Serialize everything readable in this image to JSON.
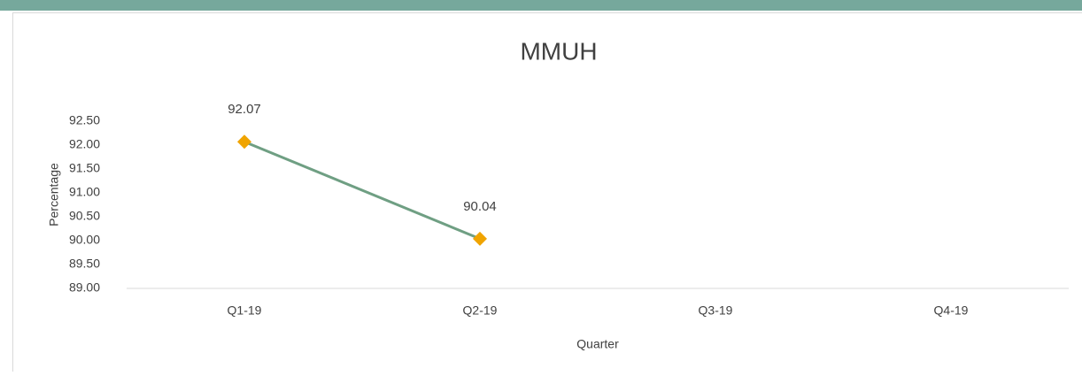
{
  "chart_data": {
    "type": "line",
    "title": "MMUH",
    "x_label": "Quarter",
    "y_label": "Percentage",
    "categories": [
      "Q1-19",
      "Q2-19",
      "Q3-19",
      "Q4-19"
    ],
    "series": [
      {
        "name": "MMUH",
        "color": "#6f9f83",
        "marker_color": "#f0a400",
        "values": [
          92.07,
          90.04,
          null,
          null
        ]
      }
    ],
    "ylim": [
      89,
      92.5
    ],
    "yticks": [
      {
        "value": 89,
        "label": "89.00"
      },
      {
        "value": 89.5,
        "label": "89.50"
      },
      {
        "value": 90,
        "label": "90.00"
      },
      {
        "value": 90.5,
        "label": "90.50"
      },
      {
        "value": 91,
        "label": "91.00"
      },
      {
        "value": 91.5,
        "label": "91.50"
      },
      {
        "value": 92,
        "label": "92.00"
      },
      {
        "value": 92.5,
        "label": "92.50"
      }
    ],
    "grid": false
  }
}
